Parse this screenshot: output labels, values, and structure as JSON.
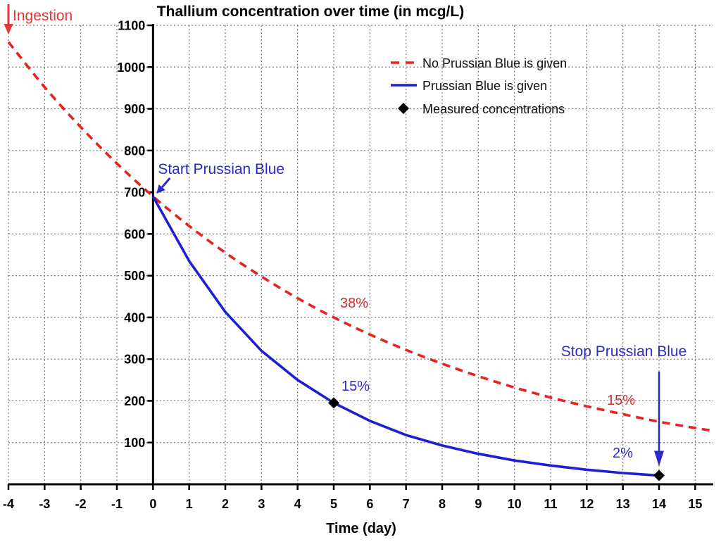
{
  "chart_data": {
    "type": "line",
    "title": "Thallium concentration over time (in mcg/L)",
    "xlabel": "Time (day)",
    "xlim": [
      -4,
      15.5
    ],
    "ylim": [
      0,
      1100
    ],
    "x_ticks": [
      -4,
      -3,
      -2,
      -1,
      0,
      1,
      2,
      3,
      4,
      5,
      6,
      7,
      8,
      9,
      10,
      11,
      12,
      13,
      14,
      15
    ],
    "y_ticks": [
      100,
      200,
      300,
      400,
      500,
      600,
      700,
      800,
      900,
      1000,
      1100
    ],
    "grid": true,
    "legend_position": "top-right",
    "series": [
      {
        "name": "No Prussian Blue is given",
        "style": "dashed",
        "color": "#e8221e",
        "x": [
          -4,
          -3,
          -2,
          -1,
          0,
          1,
          2,
          3,
          4,
          5,
          6,
          7,
          8,
          9,
          10,
          11,
          12,
          13,
          14,
          15,
          15.5
        ],
        "y": [
          1060,
          952,
          856,
          769,
          690,
          619,
          555,
          498,
          446,
          400,
          359,
          322,
          289,
          259,
          232,
          208,
          187,
          168,
          150,
          135,
          128
        ]
      },
      {
        "name": "Prussian Blue is given",
        "style": "solid",
        "color": "#1f1fd0",
        "x": [
          0,
          1,
          2,
          3,
          4,
          5,
          6,
          7,
          8,
          9,
          10,
          11,
          12,
          13,
          14
        ],
        "y": [
          690,
          535,
          413,
          320,
          250,
          195,
          152,
          118,
          93,
          73,
          57,
          45,
          35,
          27,
          21
        ]
      },
      {
        "name": "Measured concentrations",
        "style": "marker",
        "marker": "diamond",
        "color": "#000000",
        "x": [
          5,
          14
        ],
        "y": [
          195,
          21
        ]
      }
    ],
    "annotations": [
      {
        "text": "Ingestion",
        "color": "#e03a3a",
        "x": -4
      },
      {
        "text": "Start Prussian Blue",
        "color": "#2a2ac8",
        "x": 0
      },
      {
        "text": "Stop Prussian Blue",
        "color": "#2a2ac8",
        "x": 14
      },
      {
        "text": "38%",
        "color": "#d42a2a"
      },
      {
        "text": "15%",
        "color": "#2a2ac8"
      },
      {
        "text": "15%",
        "color": "#d42a2a"
      },
      {
        "text": "2%",
        "color": "#2a2ac8"
      }
    ]
  }
}
